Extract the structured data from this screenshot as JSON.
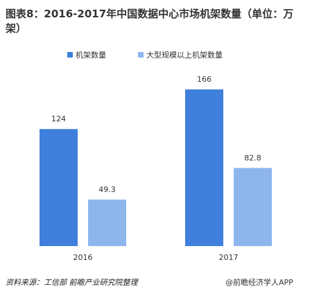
{
  "chart_data": {
    "type": "bar",
    "title": "图表8：2016-2017年中国数据中心市场机架数量（单位：万架）",
    "categories": [
      "2016",
      "2017"
    ],
    "series": [
      {
        "name": "机架数量",
        "color": "#3e80dc",
        "values": [
          124,
          166
        ]
      },
      {
        "name": "大型规模以上机架数量",
        "color": "#8db6ec",
        "values": [
          49.3,
          82.8
        ]
      }
    ],
    "source": "资料来源：工信部 前瞻产业研究院整理",
    "credit": "@前瞻经济学人APP"
  }
}
